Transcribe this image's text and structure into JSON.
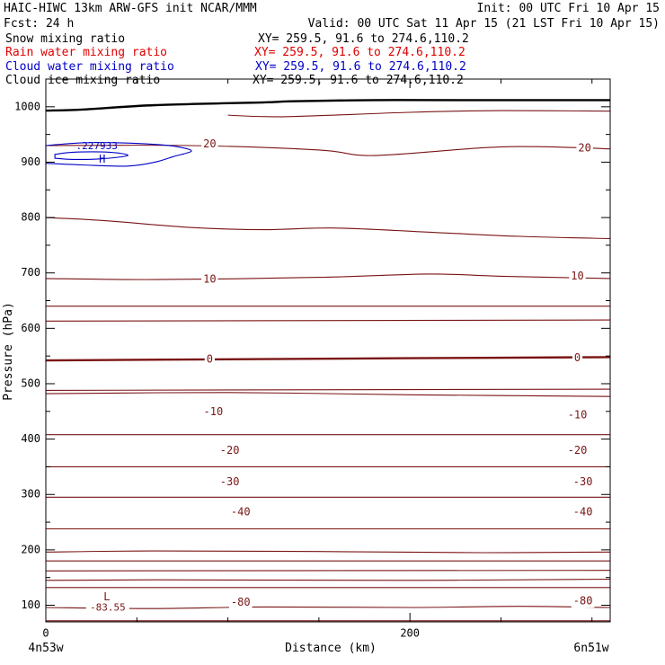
{
  "header": {
    "line1_left": "HAIC-HIWC 13km ARW-GFS init    NCAR/MMM",
    "line1_right": "Init: 00 UTC Fri 10 Apr 15",
    "line2_left": "Fcst:   24 h",
    "line2_right": "Valid: 00 UTC Sat 11 Apr 15 (21 LST Fri 10 Apr 15)"
  },
  "fields": [
    {
      "name": "Snow mixing ratio",
      "xy": "XY= 259.5, 91.6 to 274.6,110.2",
      "color": "#000000"
    },
    {
      "name": "Rain water mixing ratio",
      "xy": "XY= 259.5, 91.6 to 274.6,110.2",
      "color": "#e00000"
    },
    {
      "name": "Cloud water mixing ratio",
      "xy": "XY= 259.5, 91.6 to 274.6,110.2",
      "color": "#0000c8"
    },
    {
      "name": "Cloud ice mixing ratio",
      "xy": "XY= 259.5, 91.6 to 274.6,110.2",
      "color": "#000000"
    }
  ],
  "colors": {
    "isotherm": "#7a1414",
    "cloud_water": "#0000c8",
    "terrain": "#000000"
  },
  "chart_data": {
    "type": "line",
    "xlabel": "Distance (km)",
    "ylabel": "Pressure (hPa)",
    "xlim": [
      0,
      310
    ],
    "ylim": [
      1050,
      70
    ],
    "xticks": [
      0,
      200
    ],
    "xminor_step": 50,
    "yticks": [
      100,
      200,
      300,
      400,
      500,
      600,
      700,
      800,
      900,
      1000
    ],
    "yminor_step": 50,
    "endpoint_left": "4n53w",
    "endpoint_right": "6n51w",
    "isotherm_min_label": {
      "letter": "L",
      "value": "-83.55",
      "x": 33,
      "p": 102
    },
    "isotherm_labels": [
      {
        "text": "-80",
        "x": 107,
        "p": 105
      },
      {
        "text": "-80",
        "x": 295,
        "p": 107
      },
      {
        "text": "-40",
        "x": 107,
        "p": 268
      },
      {
        "text": "-40",
        "x": 295,
        "p": 268
      },
      {
        "text": "-30",
        "x": 101,
        "p": 322
      },
      {
        "text": "-30",
        "x": 295,
        "p": 322
      },
      {
        "text": "-20",
        "x": 101,
        "p": 379
      },
      {
        "text": "-20",
        "x": 292,
        "p": 379
      },
      {
        "text": "-10",
        "x": 92,
        "p": 449
      },
      {
        "text": "-10",
        "x": 292,
        "p": 443
      },
      {
        "text": "0",
        "x": 90,
        "p": 544
      },
      {
        "text": "0",
        "x": 292,
        "p": 546
      },
      {
        "text": "10",
        "x": 90,
        "p": 688
      },
      {
        "text": "10",
        "x": 292,
        "p": 694
      },
      {
        "text": "20",
        "x": 90,
        "p": 932
      },
      {
        "text": "20",
        "x": 296,
        "p": 925
      }
    ],
    "isotherms": [
      {
        "bold": false,
        "x": [
          0,
          310
        ],
        "p": [
          72,
          72
        ]
      },
      {
        "bold": false,
        "x": [
          0,
          60,
          120,
          200,
          260,
          310
        ],
        "p": [
          96,
          94,
          97,
          96,
          98,
          96
        ]
      },
      {
        "bold": false,
        "x": [
          0,
          310
        ],
        "p": [
          132,
          132
        ]
      },
      {
        "bold": false,
        "x": [
          0,
          60,
          200,
          310
        ],
        "p": [
          145,
          146,
          145,
          147
        ]
      },
      {
        "bold": false,
        "x": [
          0,
          310
        ],
        "p": [
          162,
          163
        ]
      },
      {
        "bold": false,
        "x": [
          0,
          310
        ],
        "p": [
          180,
          180
        ]
      },
      {
        "bold": false,
        "x": [
          0,
          60,
          150,
          240,
          310
        ],
        "p": [
          196,
          198,
          197,
          195,
          196
        ]
      },
      {
        "bold": false,
        "x": [
          0,
          310
        ],
        "p": [
          238,
          238
        ]
      },
      {
        "bold": false,
        "x": [
          0,
          310
        ],
        "p": [
          295,
          295
        ]
      },
      {
        "bold": false,
        "x": [
          0,
          310
        ],
        "p": [
          350,
          350
        ]
      },
      {
        "bold": false,
        "x": [
          0,
          310
        ],
        "p": [
          408,
          408
        ]
      },
      {
        "bold": false,
        "x": [
          0,
          100,
          200,
          310
        ],
        "p": [
          482,
          484,
          480,
          477
        ]
      },
      {
        "bold": false,
        "x": [
          0,
          310
        ],
        "p": [
          488,
          490
        ]
      },
      {
        "bold": true,
        "x": [
          0,
          90,
          200,
          310
        ],
        "p": [
          542,
          544,
          546,
          548
        ]
      },
      {
        "bold": false,
        "x": [
          0,
          310
        ],
        "p": [
          613,
          615
        ]
      },
      {
        "bold": false,
        "x": [
          0,
          310
        ],
        "p": [
          640,
          640
        ]
      },
      {
        "bold": false,
        "x": [
          0,
          60,
          150,
          210,
          250,
          310
        ],
        "p": [
          690,
          688,
          692,
          698,
          694,
          690
        ]
      },
      {
        "bold": false,
        "x": [
          0,
          30,
          80,
          120,
          160,
          220,
          260,
          310
        ],
        "p": [
          800,
          795,
          782,
          778,
          781,
          772,
          766,
          762
        ]
      },
      {
        "bold": false,
        "x": [
          0,
          80,
          150,
          180,
          240,
          270,
          310
        ],
        "p": [
          930,
          930,
          922,
          912,
          926,
          928,
          924
        ]
      },
      {
        "bold": false,
        "x": [
          100,
          130,
          200,
          250,
          310
        ],
        "p": [
          985,
          982,
          990,
          993,
          992
        ]
      }
    ],
    "cloud_water": {
      "label": "H",
      "value": ".227933",
      "label_x": 31,
      "label_p": 905,
      "value_x": 28,
      "value_p": 928,
      "outer": {
        "x": [
          0,
          20,
          45,
          60,
          70,
          80,
          72,
          60,
          40,
          20,
          0
        ],
        "p": [
          898,
          895,
          893,
          900,
          910,
          920,
          928,
          932,
          935,
          935,
          930
        ]
      },
      "inner": {
        "x": [
          5,
          15,
          30,
          45,
          35,
          15,
          5
        ],
        "p": [
          907,
          905,
          906,
          912,
          918,
          918,
          914
        ]
      }
    },
    "terrain": {
      "x": [
        0,
        20,
        60,
        120,
        135,
        180,
        230,
        310
      ],
      "p": [
        993,
        995,
        1003,
        1008,
        1010,
        1012,
        1012,
        1012
      ]
    }
  }
}
